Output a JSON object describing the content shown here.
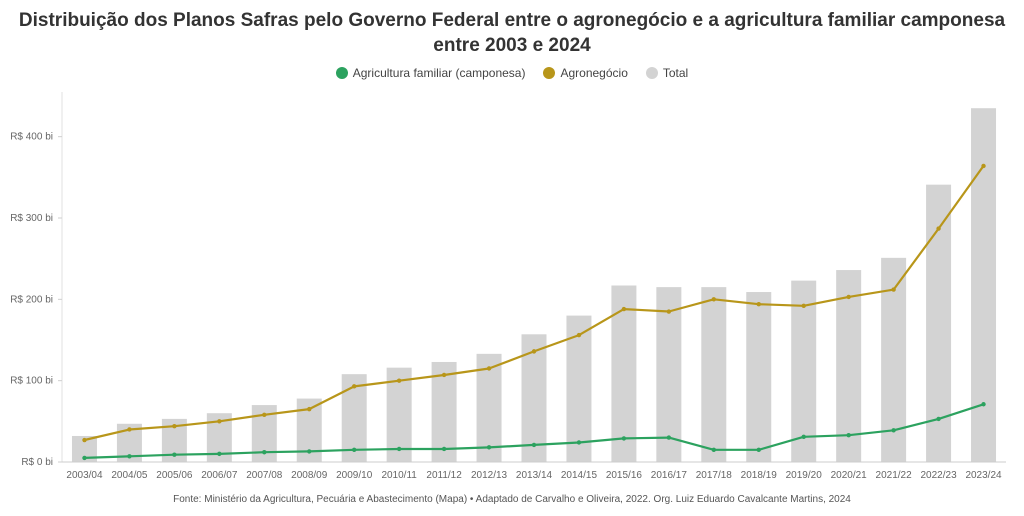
{
  "chart_data": {
    "type": "bar",
    "title": "Distribuição dos Planos Safras pelo Governo Federal entre o agronegócio e a agricultura familiar camponesa entre 2003 e 2024",
    "source": "Fonte: Ministério da Agricultura, Pecuária e Abastecimento (Mapa) • Adaptado de Carvalho e Oliveira, 2022. Org. Luiz Eduardo Cavalcante Martins, 2024",
    "categories": [
      "2003/04",
      "2004/05",
      "2005/06",
      "2006/07",
      "2007/08",
      "2008/09",
      "2009/10",
      "2010/11",
      "2011/12",
      "2012/13",
      "2013/14",
      "2014/15",
      "2015/16",
      "2016/17",
      "2017/18",
      "2018/19",
      "2019/20",
      "2020/21",
      "2021/22",
      "2022/23",
      "2023/24"
    ],
    "ylim": [
      0,
      450
    ],
    "yticks": [
      0,
      100,
      200,
      300,
      400
    ],
    "ytick_labels": [
      "R$ 0 bi",
      "R$ 100 bi",
      "R$ 200 bi",
      "R$ 300 bi",
      "R$ 400 bi"
    ],
    "xlabel": "",
    "ylabel": "",
    "legend_position": "top",
    "grid": false,
    "series": [
      {
        "name": "Agricultura familiar (camponesa)",
        "kind": "line",
        "color": "#2ca25f",
        "values": [
          5,
          7,
          9,
          10,
          12,
          13,
          15,
          16,
          16,
          18,
          21,
          24,
          29,
          30,
          15,
          15,
          31,
          33,
          39,
          53,
          71
        ]
      },
      {
        "name": "Agronegócio",
        "kind": "line",
        "color": "#b8961a",
        "values": [
          27,
          40,
          44,
          50,
          58,
          65,
          93,
          100,
          107,
          115,
          136,
          156,
          188,
          185,
          200,
          194,
          192,
          203,
          212,
          287,
          364
        ]
      },
      {
        "name": "Total",
        "kind": "bar",
        "color": "#d3d3d3",
        "values": [
          32,
          47,
          53,
          60,
          70,
          78,
          108,
          116,
          123,
          133,
          157,
          180,
          217,
          215,
          215,
          209,
          223,
          236,
          251,
          341,
          435
        ]
      }
    ]
  }
}
